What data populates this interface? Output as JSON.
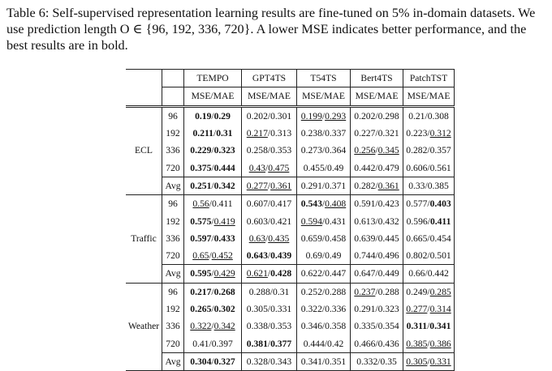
{
  "caption": "Table 6: Self-supervised representation learning results are fine-tuned on 5% in-domain datasets. We use prediction length O ∈ {96, 192, 336, 720}. A lower MSE indicates better performance, and the best results are in bold.",
  "columns": [
    "TEMPO",
    "GPT4TS",
    "T54TS",
    "Bert4TS",
    "PatchTST"
  ],
  "metric": "MSE/MAE",
  "groups": [
    {
      "name": "ECL",
      "rows": [
        {
          "h": "96",
          "cells": [
            {
              "mse": "0.19",
              "mae": "0.29",
              "mb": true,
              "ab": true
            },
            {
              "mse": "0.202",
              "mae": "0.301"
            },
            {
              "mse": "0.199",
              "mae": "0.293",
              "mu": true,
              "au": true
            },
            {
              "mse": "0.202",
              "mae": "0.298"
            },
            {
              "mse": "0.21",
              "mae": "0.308"
            }
          ]
        },
        {
          "h": "192",
          "cells": [
            {
              "mse": "0.211",
              "mae": "0.31",
              "mb": true,
              "ab": true
            },
            {
              "mse": "0.217",
              "mae": "0.313",
              "mu": true
            },
            {
              "mse": "0.238",
              "mae": "0.337"
            },
            {
              "mse": "0.227",
              "mae": "0.321"
            },
            {
              "mse": "0.223",
              "mae": "0.312",
              "au": true
            }
          ]
        },
        {
          "h": "336",
          "cells": [
            {
              "mse": "0.229",
              "mae": "0.323",
              "mb": true,
              "ab": true
            },
            {
              "mse": "0.258",
              "mae": "0.353"
            },
            {
              "mse": "0.273",
              "mae": "0.364"
            },
            {
              "mse": "0.256",
              "mae": "0.345",
              "mu": true,
              "au": true
            },
            {
              "mse": "0.282",
              "mae": "0.357"
            }
          ]
        },
        {
          "h": "720",
          "cells": [
            {
              "mse": "0.375",
              "mae": "0.444",
              "mb": true,
              "ab": true
            },
            {
              "mse": "0.43",
              "mae": "0.475",
              "mu": true,
              "au": true
            },
            {
              "mse": "0.455",
              "mae": "0.49"
            },
            {
              "mse": "0.442",
              "mae": "0.479"
            },
            {
              "mse": "0.606",
              "mae": "0.561"
            }
          ]
        },
        {
          "h": "Avg",
          "cells": [
            {
              "mse": "0.251",
              "mae": "0.342",
              "mb": true,
              "ab": true
            },
            {
              "mse": "0.277",
              "mae": "0.361",
              "mu": true,
              "au": true
            },
            {
              "mse": "0.291",
              "mae": "0.371"
            },
            {
              "mse": "0.282",
              "mae": "0.361",
              "au": true
            },
            {
              "mse": "0.33",
              "mae": "0.385"
            }
          ]
        }
      ]
    },
    {
      "name": "Traffic",
      "rows": [
        {
          "h": "96",
          "cells": [
            {
              "mse": "0.56",
              "mae": "0.411",
              "mu": true
            },
            {
              "mse": "0.607",
              "mae": "0.417"
            },
            {
              "mse": "0.543",
              "mae": "0.408",
              "mb": true,
              "au": true
            },
            {
              "mse": "0.591",
              "mae": "0.423"
            },
            {
              "mse": "0.577",
              "mae": "0.403",
              "ab": true
            }
          ]
        },
        {
          "h": "192",
          "cells": [
            {
              "mse": "0.575",
              "mae": "0.419",
              "mb": true,
              "au": true
            },
            {
              "mse": "0.603",
              "mae": "0.421"
            },
            {
              "mse": "0.594",
              "mae": "0.431",
              "mu": true
            },
            {
              "mse": "0.613",
              "mae": "0.432"
            },
            {
              "mse": "0.596",
              "mae": "0.411",
              "ab": true
            }
          ]
        },
        {
          "h": "336",
          "cells": [
            {
              "mse": "0.597",
              "mae": "0.433",
              "mb": true,
              "ab": true
            },
            {
              "mse": "0.63",
              "mae": "0.435",
              "mu": true,
              "au": true
            },
            {
              "mse": "0.659",
              "mae": "0.458"
            },
            {
              "mse": "0.639",
              "mae": "0.445"
            },
            {
              "mse": "0.665",
              "mae": "0.454"
            }
          ]
        },
        {
          "h": "720",
          "cells": [
            {
              "mse": "0.65",
              "mae": "0.452",
              "mu": true,
              "au": true
            },
            {
              "mse": "0.643",
              "mae": "0.439",
              "mb": true,
              "ab": true
            },
            {
              "mse": "0.69",
              "mae": "0.49"
            },
            {
              "mse": "0.744",
              "mae": "0.496"
            },
            {
              "mse": "0.802",
              "mae": "0.501"
            }
          ]
        },
        {
          "h": "Avg",
          "cells": [
            {
              "mse": "0.595",
              "mae": "0.429",
              "mb": true,
              "au": true
            },
            {
              "mse": "0.621",
              "mae": "0.428",
              "mu": true,
              "ab": true
            },
            {
              "mse": "0.622",
              "mae": "0.447"
            },
            {
              "mse": "0.647",
              "mae": "0.449"
            },
            {
              "mse": "0.66",
              "mae": "0.442"
            }
          ]
        }
      ]
    },
    {
      "name": "Weather",
      "rows": [
        {
          "h": "96",
          "cells": [
            {
              "mse": "0.217",
              "mae": "0.268",
              "mb": true,
              "ab": true
            },
            {
              "mse": "0.288",
              "mae": "0.31"
            },
            {
              "mse": "0.252",
              "mae": "0.288"
            },
            {
              "mse": "0.237",
              "mae": "0.288",
              "mu": true
            },
            {
              "mse": "0.249",
              "mae": "0.285",
              "au": true
            }
          ]
        },
        {
          "h": "192",
          "cells": [
            {
              "mse": "0.265",
              "mae": "0.302",
              "mb": true,
              "ab": true
            },
            {
              "mse": "0.305",
              "mae": "0.331"
            },
            {
              "mse": "0.322",
              "mae": "0.336"
            },
            {
              "mse": "0.291",
              "mae": "0.323"
            },
            {
              "mse": "0.277",
              "mae": "0.314",
              "mu": true,
              "au": true
            }
          ]
        },
        {
          "h": "336",
          "cells": [
            {
              "mse": "0.322",
              "mae": "0.342",
              "mu": true,
              "au": true
            },
            {
              "mse": "0.338",
              "mae": "0.353"
            },
            {
              "mse": "0.346",
              "mae": "0.358"
            },
            {
              "mse": "0.335",
              "mae": "0.354"
            },
            {
              "mse": "0.311",
              "mae": "0.341",
              "mb": true,
              "ab": true
            }
          ]
        },
        {
          "h": "720",
          "cells": [
            {
              "mse": "0.41",
              "mae": "0.397"
            },
            {
              "mse": "0.381",
              "mae": "0.377",
              "mb": true,
              "ab": true
            },
            {
              "mse": "0.444",
              "mae": "0.42"
            },
            {
              "mse": "0.466",
              "mae": "0.436"
            },
            {
              "mse": "0.385",
              "mae": "0.386",
              "mu": true,
              "au": true
            }
          ]
        },
        {
          "h": "Avg",
          "cells": [
            {
              "mse": "0.304",
              "mae": "0.327",
              "mb": true,
              "ab": true
            },
            {
              "mse": "0.328",
              "mae": "0.343"
            },
            {
              "mse": "0.341",
              "mae": "0.351"
            },
            {
              "mse": "0.332",
              "mae": "0.35"
            },
            {
              "mse": "0.305",
              "mae": "0.331",
              "mu": true,
              "au": true
            }
          ]
        }
      ]
    }
  ]
}
